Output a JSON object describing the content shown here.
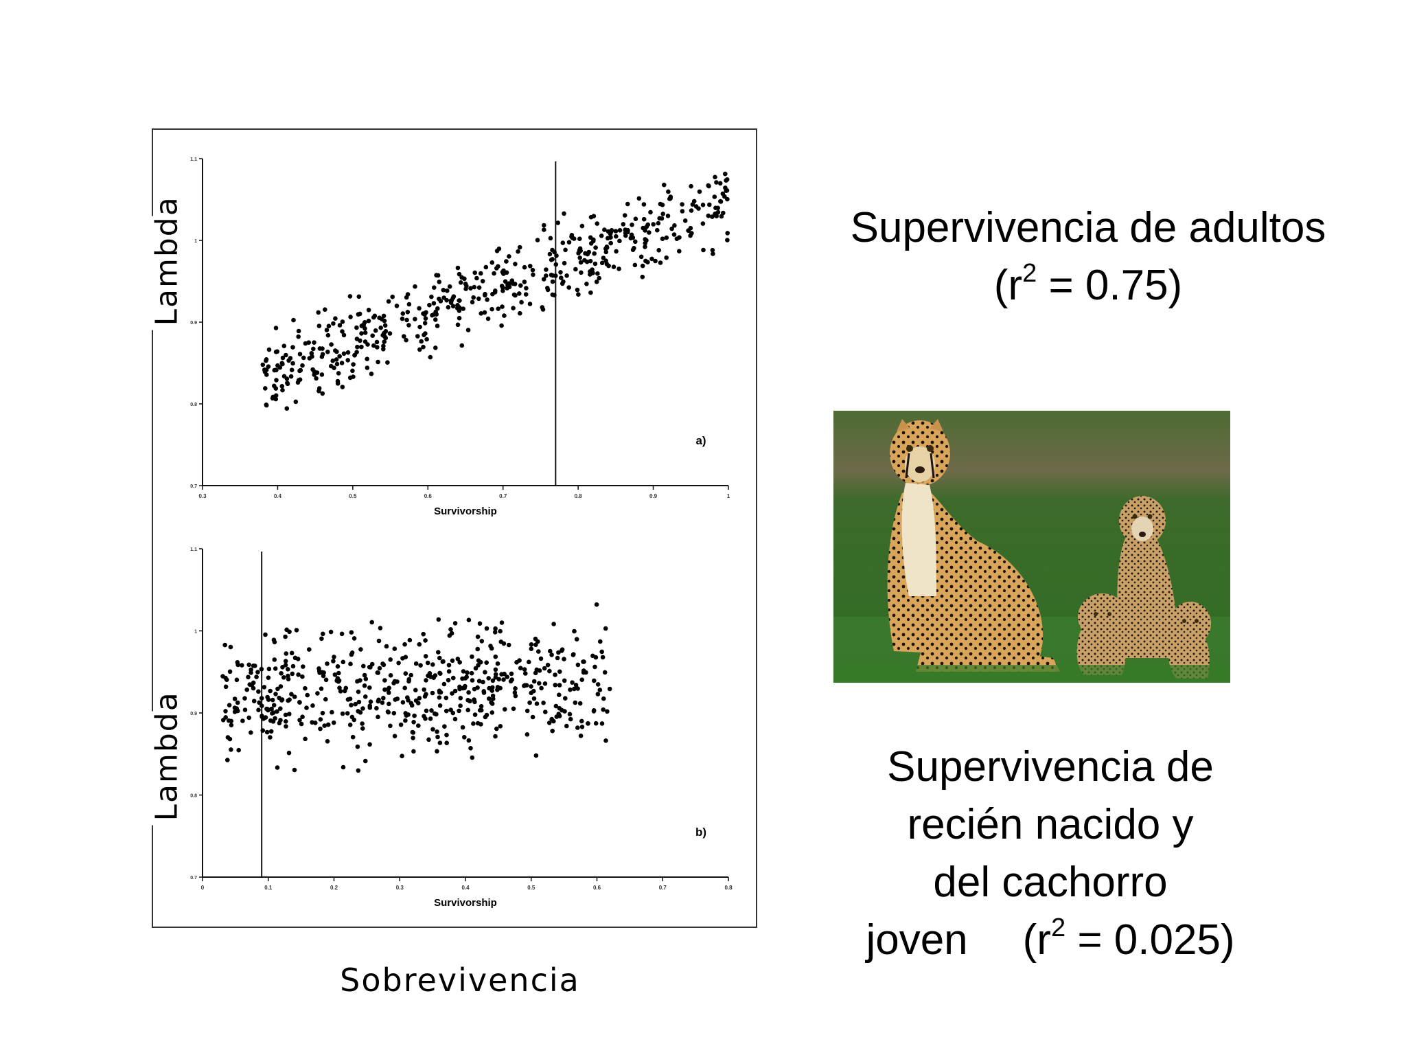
{
  "chart_data": [
    {
      "type": "scatter",
      "panel_label": "a)",
      "xlabel": "Survivorship",
      "ylabel": "Lambda",
      "xlim": [
        0.3,
        1.0
      ],
      "ylim": [
        0.7,
        1.1
      ],
      "x_ticks": [
        "0.3",
        "0.4",
        "0.5",
        "0.6",
        "0.7",
        "0.8",
        "0.9",
        "1"
      ],
      "y_ticks": [
        "0.7",
        "0.8",
        "0.9",
        "1",
        "1.1"
      ],
      "reference_line_x": 0.77,
      "trend": {
        "x_start": 0.38,
        "x_end": 1.0,
        "y_start": 0.835,
        "y_end": 1.045,
        "spread": 0.045
      },
      "point_count": 520
    },
    {
      "type": "scatter",
      "panel_label": "b)",
      "xlabel": "Survivorship",
      "ylabel": "Lambda",
      "xlim": [
        0,
        0.8
      ],
      "ylim": [
        0.7,
        1.1
      ],
      "x_ticks": [
        "0",
        "0.1",
        "0.2",
        "0.3",
        "0.4",
        "0.5",
        "0.6",
        "0.7",
        "0.8"
      ],
      "y_ticks": [
        "0.7",
        "0.8",
        "0.9",
        "1",
        "1.1"
      ],
      "reference_line_x": 0.09,
      "trend": {
        "x_start": 0.03,
        "x_end": 0.62,
        "y_start": 0.92,
        "y_end": 0.94,
        "spread": 0.07
      },
      "point_count": 560
    }
  ],
  "labels": {
    "lambda_a": "Lambda",
    "lambda_b": "Lambda",
    "sobrevivencia": "Sobrevivencia"
  },
  "captions": {
    "adults_line1": "Supervivencia de adultos",
    "adults_r2_prefix": "(r",
    "adults_r2_sup": "2",
    "adults_r2_suffix": " = 0.75)",
    "young_line1": "Supervivencia de",
    "young_line2": "recién nacido y",
    "young_line3": "del cachorro",
    "young_line4_word": "joven",
    "young_r2_prefix": "(r",
    "young_r2_sup": "2",
    "young_r2_suffix": " = 0.025)"
  },
  "photo": {
    "icon": "cheetah-family-photo"
  }
}
